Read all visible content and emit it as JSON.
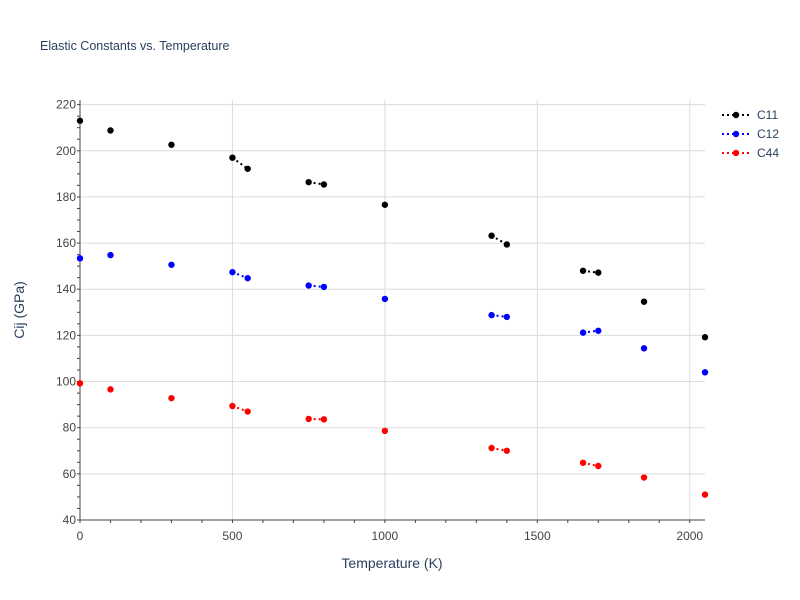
{
  "chart_data": {
    "type": "line",
    "title": "Elastic Constants vs. Temperature",
    "xlabel": "Temperature (K)",
    "ylabel": "Cij (GPa)",
    "xlim": [
      0,
      2050
    ],
    "ylim": [
      40,
      222
    ],
    "x_ticks": [
      0,
      500,
      1000,
      1500,
      2000
    ],
    "y_ticks": [
      40,
      60,
      80,
      100,
      120,
      140,
      160,
      180,
      200,
      220
    ],
    "grid": true,
    "legend_position": "top-right",
    "line_style": "dotted",
    "series": [
      {
        "name": "C11",
        "color": "#000000",
        "segments": [
          [
            [
              0,
              213
            ]
          ],
          [
            [
              100,
              208.8
            ]
          ],
          [
            [
              300,
              202.6
            ]
          ],
          [
            [
              500,
              197
            ],
            [
              550,
              192.2
            ]
          ],
          [
            [
              750,
              186.4
            ],
            [
              800,
              185.4
            ]
          ],
          [
            [
              1000,
              176.6
            ]
          ],
          [
            [
              1350,
              163.2
            ],
            [
              1400,
              159.4
            ]
          ],
          [
            [
              1650,
              148
            ],
            [
              1700,
              147.2
            ]
          ],
          [
            [
              1850,
              134.6
            ]
          ],
          [
            [
              2050,
              119.2
            ]
          ]
        ]
      },
      {
        "name": "C12",
        "color": "#0000ff",
        "segments": [
          [
            [
              0,
              153.4
            ]
          ],
          [
            [
              100,
              154.8
            ]
          ],
          [
            [
              300,
              150.6
            ]
          ],
          [
            [
              500,
              147.4
            ],
            [
              550,
              144.8
            ]
          ],
          [
            [
              750,
              141.6
            ],
            [
              800,
              141
            ]
          ],
          [
            [
              1000,
              135.8
            ]
          ],
          [
            [
              1350,
              128.8
            ],
            [
              1400,
              128
            ]
          ],
          [
            [
              1650,
              121.2
            ],
            [
              1700,
              122
            ]
          ],
          [
            [
              1850,
              114.4
            ]
          ],
          [
            [
              2050,
              104
            ]
          ]
        ]
      },
      {
        "name": "C44",
        "color": "#ff0000",
        "segments": [
          [
            [
              0,
              99.2
            ]
          ],
          [
            [
              100,
              96.6
            ]
          ],
          [
            [
              300,
              92.8
            ]
          ],
          [
            [
              500,
              89.4
            ],
            [
              550,
              87
            ]
          ],
          [
            [
              750,
              83.8
            ],
            [
              800,
              83.6
            ]
          ],
          [
            [
              1000,
              78.6
            ]
          ],
          [
            [
              1350,
              71.2
            ],
            [
              1400,
              70
            ]
          ],
          [
            [
              1650,
              64.8
            ],
            [
              1700,
              63.4
            ]
          ],
          [
            [
              1850,
              58.4
            ]
          ],
          [
            [
              2050,
              51
            ]
          ]
        ]
      }
    ]
  }
}
